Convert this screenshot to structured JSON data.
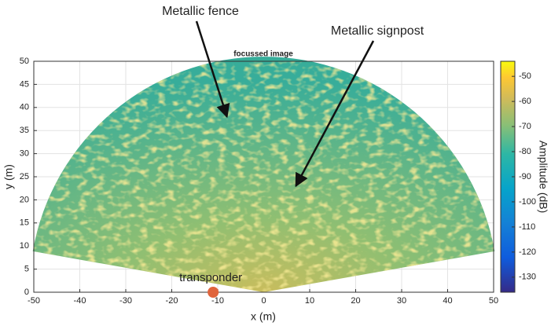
{
  "chart_data": {
    "type": "polar_image",
    "title": "focussed image",
    "xlabel": "x (m)",
    "ylabel": "y (m)",
    "xlim": [
      -50,
      50
    ],
    "ylim": [
      0,
      50
    ],
    "xticks": [
      -50,
      -40,
      -30,
      -20,
      -10,
      0,
      10,
      20,
      30,
      40,
      50
    ],
    "yticks": [
      0,
      5,
      10,
      15,
      20,
      25,
      30,
      35,
      40,
      45,
      50
    ],
    "grid": true,
    "sector": {
      "range": 51,
      "angles": [
        10,
        170
      ]
    },
    "colorbar": {
      "label": "Amplitude (dB)",
      "clim": [
        -136,
        -44
      ],
      "ticks": [
        -130,
        -120,
        -110,
        -100,
        -90,
        -80,
        -70,
        -60,
        -50
      ]
    },
    "annotations": [
      {
        "text": "Metallic fence",
        "xy": [
          -8,
          38
        ]
      },
      {
        "text": "Metallic signpost",
        "xy": [
          7,
          23
        ]
      }
    ],
    "marker": {
      "label": "transponder",
      "xy": [
        -11,
        0
      ],
      "color": "#e0643c"
    }
  }
}
